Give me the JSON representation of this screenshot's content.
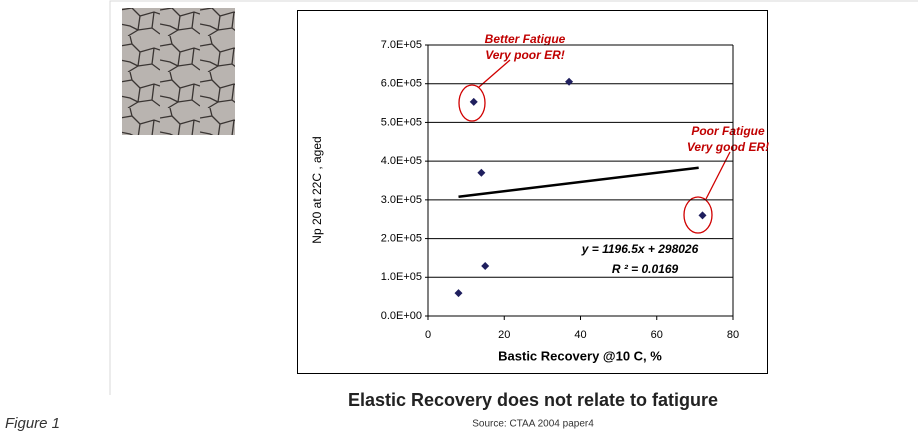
{
  "chart_data": {
    "type": "scatter",
    "x_label": "Bastic Recovery @10 C, %",
    "y_label": "Np 20 at 22C , aged",
    "x": [
      12,
      14,
      37,
      15,
      8,
      72
    ],
    "values": [
      553000,
      370000,
      605000,
      129000,
      59000,
      260000
    ],
    "color": "#1f1f5e",
    "xlim": [
      0,
      80
    ],
    "xticks": [
      0,
      20,
      40,
      60,
      80
    ],
    "ylim": [
      0,
      700000
    ],
    "yticks": [
      {
        "value": 0,
        "label": "0.0E+00"
      },
      {
        "value": 100000,
        "label": "1.0E+05"
      },
      {
        "value": 200000,
        "label": "2.0E+05"
      },
      {
        "value": 300000,
        "label": "3.0E+05"
      },
      {
        "value": 400000,
        "label": "4.0E+05"
      },
      {
        "value": 500000,
        "label": "5.0E+05"
      },
      {
        "value": 600000,
        "label": "6.0E+05"
      },
      {
        "value": 700000,
        "label": "7.0E+05"
      }
    ],
    "grid": true,
    "trendline": {
      "x": [
        8,
        71
      ],
      "values": [
        308000,
        383000
      ],
      "equation": "y = 1196.5x + 298026",
      "r2": "R ² = 0.0169"
    },
    "annotations": [
      [
        "Better Fatigue",
        "Very poor ER!"
      ],
      [
        "Poor Fatigue",
        "Very good ER!"
      ]
    ]
  },
  "caption": "Elastic Recovery does not relate to fatigure",
  "figure_label": "Figure 1",
  "source": "Source: CTAA 2004 paper4"
}
